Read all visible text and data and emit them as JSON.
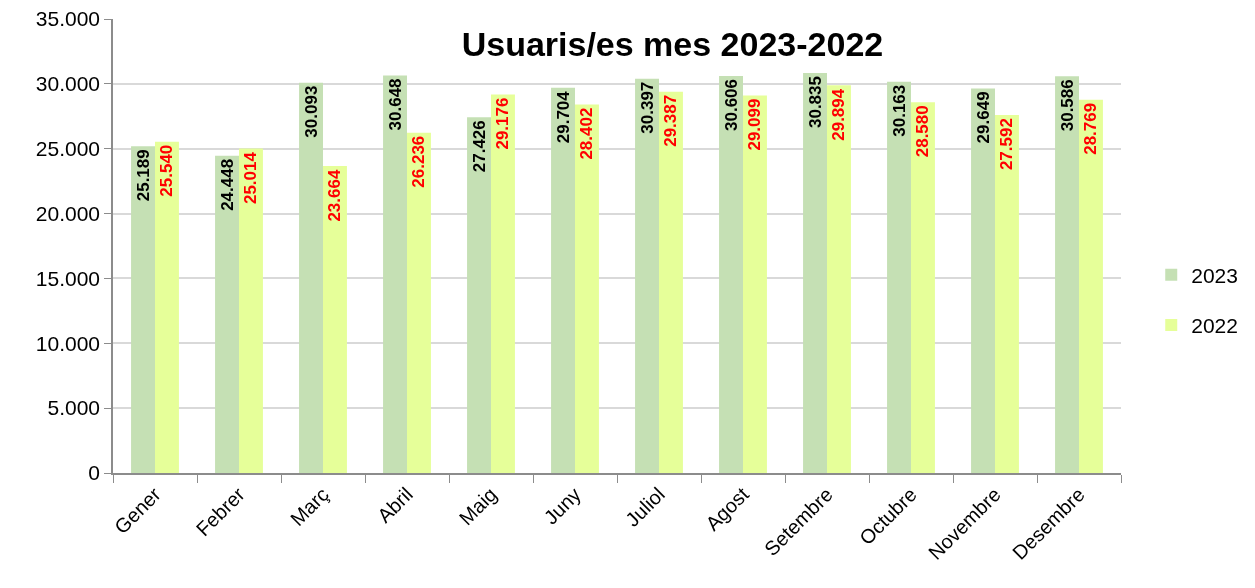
{
  "chart_data": {
    "type": "bar",
    "title": "Usuaris/es mes 2023-2022",
    "categories": [
      "Gener",
      "Febrer",
      "Març",
      "Abril",
      "Maig",
      "Juny",
      "Juliol",
      "Agost",
      "Setembre",
      "Octubre",
      "Novembre",
      "Desembre"
    ],
    "series": [
      {
        "name": "2023",
        "color": "#c5e0b4",
        "values": [
          25189,
          24448,
          30093,
          30648,
          27426,
          29704,
          30397,
          30606,
          30835,
          30163,
          29649,
          30586
        ],
        "value_labels": [
          "25.189",
          "24.448",
          "30.093",
          "30.648",
          "27.426",
          "29.704",
          "30.397",
          "30.606",
          "30.835",
          "30.163",
          "29.649",
          "30.586"
        ]
      },
      {
        "name": "2022",
        "color": "#e6ff99",
        "values": [
          25540,
          25014,
          23664,
          26236,
          29176,
          28402,
          29387,
          29099,
          29894,
          28580,
          27592,
          28769
        ],
        "value_labels": [
          "25.540",
          "25.014",
          "23.664",
          "26.236",
          "29.176",
          "28.402",
          "29.387",
          "29.099",
          "29.894",
          "28.580",
          "27.592",
          "28.769"
        ]
      }
    ],
    "ylim": [
      0,
      35000
    ],
    "yticks": [
      {
        "value": 0,
        "label": "0"
      },
      {
        "value": 5000,
        "label": "5.000"
      },
      {
        "value": 10000,
        "label": "10.000"
      },
      {
        "value": 15000,
        "label": "15.000"
      },
      {
        "value": 20000,
        "label": "20.000"
      },
      {
        "value": 25000,
        "label": "25.000"
      },
      {
        "value": 30000,
        "label": "30.000"
      },
      {
        "value": 35000,
        "label": "35.000"
      }
    ],
    "grid": "y",
    "legend": "right"
  }
}
